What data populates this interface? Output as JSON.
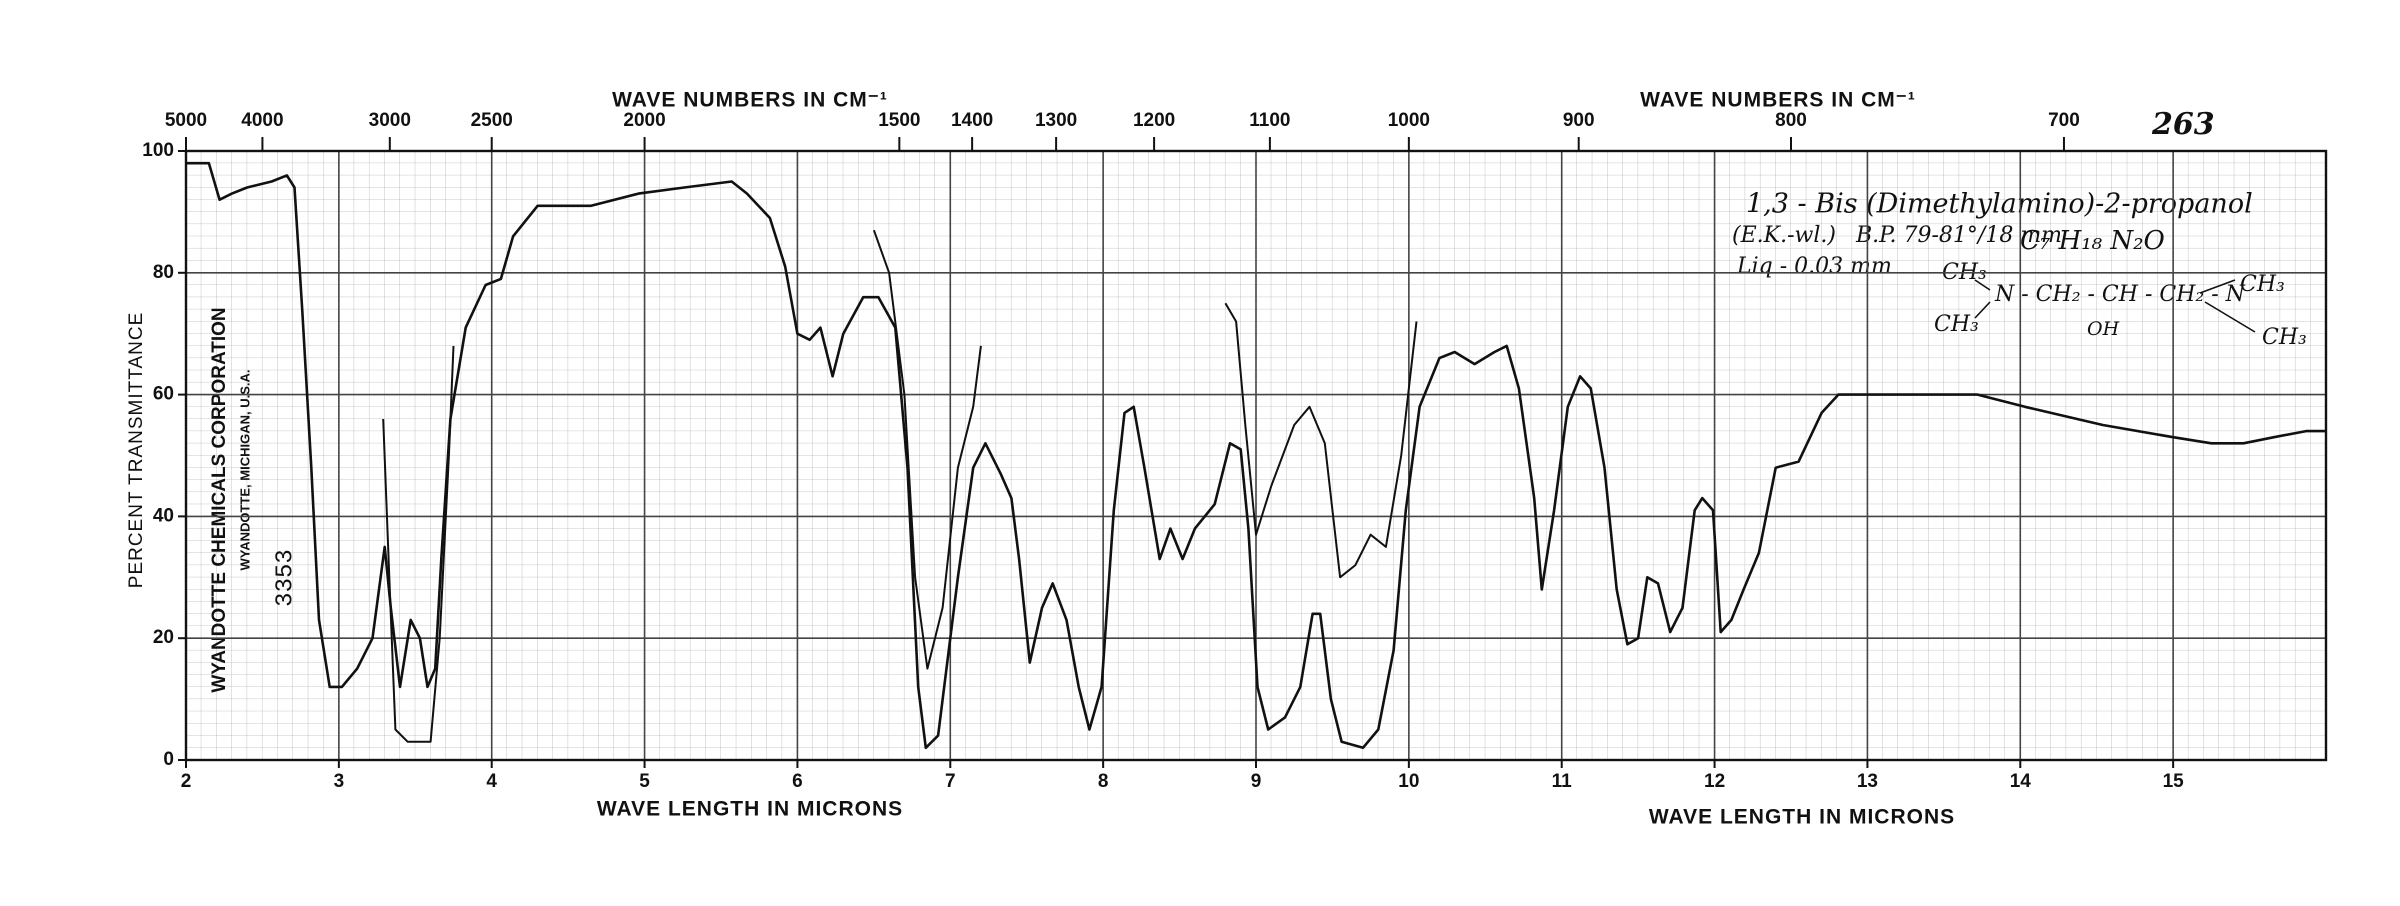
{
  "chart_data": {
    "type": "line",
    "x_labels": [
      "WAVE LENGTH IN MICRONS",
      "WAVE LENGTH IN MICRONS"
    ],
    "x2_labels": [
      "WAVE NUMBERS IN CM⁻¹",
      "WAVE NUMBERS IN CM⁻¹"
    ],
    "y_label": "PERCENT TRANSMITTANCE",
    "xlim": [
      2,
      16
    ],
    "xticks": [
      2,
      3,
      4,
      5,
      6,
      7,
      8,
      9,
      10,
      11,
      12,
      13,
      14,
      15
    ],
    "x2ticks": [
      5000,
      4000,
      3000,
      2500,
      2000,
      1500,
      1400,
      1300,
      1200,
      1100,
      1000,
      900,
      800,
      700
    ],
    "ylim": [
      0,
      100
    ],
    "yticks": [
      0,
      20,
      40,
      60,
      80,
      100
    ],
    "grid": true,
    "series": [
      {
        "color": "#111111",
        "x": [
          2.0,
          2.15,
          2.22,
          2.3,
          2.4,
          2.56,
          2.66,
          2.71,
          2.76,
          2.82,
          2.87,
          2.94,
          3.02,
          3.12,
          3.22,
          3.3,
          3.34,
          3.4,
          3.47,
          3.53,
          3.58,
          3.63,
          3.67,
          3.73,
          3.83,
          3.96,
          4.06,
          4.14,
          4.3,
          4.65,
          4.96,
          5.26,
          5.57,
          5.67,
          5.82,
          5.92,
          6.0,
          6.08,
          6.15,
          6.23,
          6.3,
          6.43,
          6.53,
          6.64,
          6.72,
          6.79,
          6.84,
          6.92,
          7.05,
          7.15,
          7.23,
          7.33,
          7.4,
          7.45,
          7.52,
          7.6,
          7.67,
          7.76,
          7.84,
          7.91,
          7.99,
          8.07,
          8.14,
          8.2,
          8.27,
          8.37,
          8.44,
          8.52,
          8.6,
          8.73,
          8.83,
          8.9,
          8.95,
          9.01,
          9.08,
          9.19,
          9.29,
          9.37,
          9.42,
          9.49,
          9.56,
          9.7,
          9.8,
          9.9,
          9.98,
          10.07,
          10.2,
          10.3,
          10.43,
          10.56,
          10.64,
          10.72,
          10.82,
          10.87,
          10.95,
          11.04,
          11.12,
          11.19,
          11.28,
          11.36,
          11.43,
          11.5,
          11.56,
          11.63,
          11.71,
          11.79,
          11.87,
          11.92,
          11.99,
          12.04,
          12.11,
          12.19,
          12.29,
          12.4,
          12.55,
          12.7,
          12.81,
          13.0,
          13.31,
          13.72,
          14.03,
          14.54,
          15.0,
          15.25,
          15.46,
          15.66,
          15.87,
          16.0
        ],
        "values": [
          98,
          98,
          92,
          93,
          94,
          95,
          96,
          94,
          74,
          48,
          23,
          12,
          12,
          15,
          20,
          35,
          25,
          12,
          23,
          20,
          12,
          15,
          33,
          56,
          71,
          78,
          79,
          86,
          91,
          91,
          93,
          94,
          95,
          93,
          89,
          81,
          70,
          69,
          71,
          63,
          70,
          76,
          76,
          71,
          48,
          12,
          2,
          4,
          30,
          48,
          52,
          47,
          43,
          33,
          16,
          25,
          29,
          23,
          12,
          5,
          12,
          41,
          57,
          58,
          48,
          33,
          38,
          33,
          38,
          42,
          52,
          51,
          38,
          12,
          5,
          7,
          12,
          24,
          24,
          10,
          3,
          2,
          5,
          18,
          41,
          58,
          66,
          67,
          65,
          67,
          68,
          61,
          43,
          28,
          41,
          58,
          63,
          61,
          48,
          28,
          19,
          20,
          30,
          29,
          21,
          25,
          41,
          43,
          41,
          21,
          23,
          28,
          34,
          48,
          49,
          57,
          60,
          60,
          60,
          60,
          58,
          55,
          53,
          52,
          52,
          53,
          54,
          54
        ]
      },
      {
        "color": "#111111",
        "x": [
          3.29,
          3.33,
          3.37,
          3.45,
          3.6,
          3.66,
          3.72,
          3.75,
          6.0,
          6.5,
          6.6,
          6.7,
          6.77,
          6.85,
          6.95,
          7.05,
          7.15,
          7.2,
          8.0,
          8.8,
          8.87,
          8.93,
          9.0,
          9.1,
          9.25,
          9.35,
          9.45,
          9.55,
          9.65,
          9.75,
          9.85,
          9.95,
          10.05
        ],
        "values": [
          56,
          30,
          5,
          3,
          3,
          20,
          50,
          68,
          null,
          87,
          80,
          60,
          30,
          15,
          25,
          48,
          58,
          68,
          null,
          75,
          72,
          55,
          37,
          45,
          55,
          58,
          52,
          30,
          32,
          37,
          35,
          50,
          72
        ]
      }
    ],
    "annotations": {
      "sheet_number": "263",
      "compound": "1,3 - Bis (Dimethylamino)-2-propanol",
      "source": "(E.K.-wl.)",
      "boiling_point": "B.P. 79-81°/18 mm",
      "formula": "C₇ H₁₈ N₂O",
      "sample": "Liq - 0.03 mm",
      "structure": [
        "CH₃",
        "N - CH₂ - CH - CH₂ - N",
        "CH₃",
        "OH",
        "CH₃",
        "CH₃"
      ],
      "company": "WYANDOTTE CHEMICALS CORPORATION",
      "location": "WYANDOTTE, MICHIGAN, U.S.A.",
      "spectrum_number": "3353"
    }
  }
}
